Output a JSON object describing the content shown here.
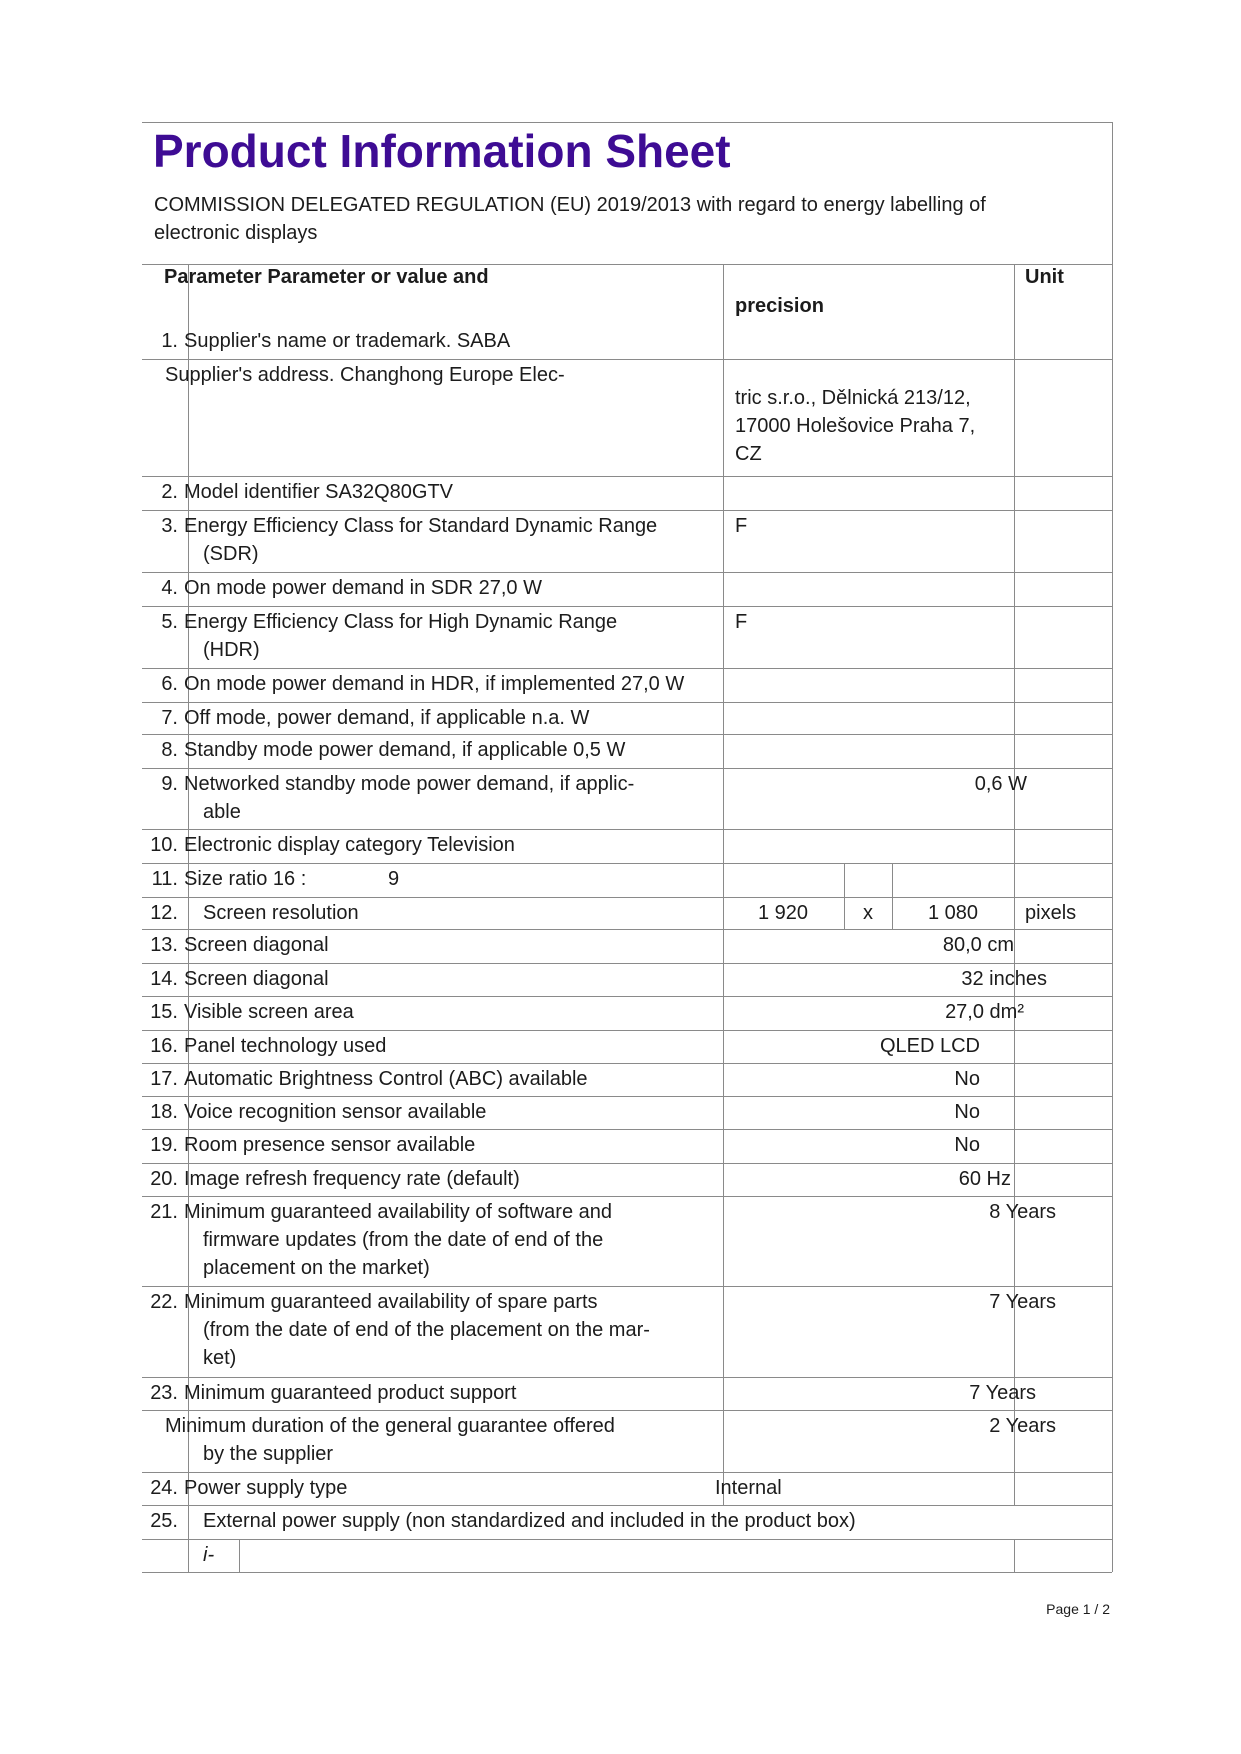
{
  "title": "Product Information Sheet",
  "subtitle": [
    "COMMISSION DELEGATED REGULATION (EU) 2019/2013 with regard to energy labelling of",
    "electronic displays"
  ],
  "header": {
    "param": "Parameter Parameter or value and",
    "precision": "precision",
    "unit": "Unit"
  },
  "rows": [
    {
      "num": "1.",
      "param": [
        "Supplier's name or trademark. SABA"
      ],
      "value": [],
      "unit": ""
    },
    {
      "num": "",
      "param": [
        "Supplier's address. Changhong Europe Elec-"
      ],
      "value": [
        "tric s.r.o., Dělnická 213/12,",
        "17000 Holešovice Praha 7,",
        "CZ"
      ],
      "unit": ""
    },
    {
      "num": "2.",
      "param": [
        "Model identifier SA32Q80GTV"
      ],
      "value": [],
      "unit": ""
    },
    {
      "num": "3.",
      "param": [
        "Energy Efficiency Class for Standard Dynamic Range",
        "(SDR)"
      ],
      "value": [
        "F"
      ],
      "unit": ""
    },
    {
      "num": "4.",
      "param": [
        "On mode power demand in SDR 27,0 W"
      ],
      "value": [],
      "unit": ""
    },
    {
      "num": "5.",
      "param": [
        "Energy Efficiency Class for High Dynamic Range",
        "(HDR)"
      ],
      "value": [
        "F"
      ],
      "unit": ""
    },
    {
      "num": "6.",
      "param": [
        "On mode power demand in HDR, if implemented 27,0 W"
      ],
      "value": [],
      "unit": ""
    },
    {
      "num": "7.",
      "param": [
        "Off mode, power demand, if applicable n.a. W"
      ],
      "value": [],
      "unit": ""
    },
    {
      "num": "8.",
      "param": [
        "Standby mode power demand, if applicable 0,5 W"
      ],
      "value": [],
      "unit": ""
    },
    {
      "num": "9.",
      "param": [
        "Networked standby mode power demand, if applic-",
        "able"
      ],
      "value": [
        "0,6 W"
      ],
      "unit": ""
    },
    {
      "num": "10.",
      "param": [
        "Electronic display category Television"
      ],
      "value": [],
      "unit": ""
    },
    {
      "num": "11.",
      "param": [
        "Size ratio 16 :",
        "9"
      ],
      "value": [],
      "unit": ""
    },
    {
      "num": "12.",
      "param": [
        "Screen resolution"
      ],
      "value": [
        "1 920",
        "x",
        "1 080"
      ],
      "unit": "pixels"
    },
    {
      "num": "13.",
      "param": [
        "Screen diagonal"
      ],
      "value": [
        "80,0 cm"
      ],
      "unit": ""
    },
    {
      "num": "14.",
      "param": [
        "Screen diagonal"
      ],
      "value": [
        "32 inches"
      ],
      "unit": ""
    },
    {
      "num": "15.",
      "param": [
        "Visible screen area"
      ],
      "value": [
        "27,0 dm²"
      ],
      "unit": ""
    },
    {
      "num": "16.",
      "param": [
        "Panel technology used"
      ],
      "value": [
        "QLED LCD"
      ],
      "unit": ""
    },
    {
      "num": "17.",
      "param": [
        "Automatic Brightness Control (ABC) available"
      ],
      "value": [
        "No"
      ],
      "unit": ""
    },
    {
      "num": "18.",
      "param": [
        "Voice recognition sensor available"
      ],
      "value": [
        "No"
      ],
      "unit": ""
    },
    {
      "num": "19.",
      "param": [
        "Room presence sensor available"
      ],
      "value": [
        "No"
      ],
      "unit": ""
    },
    {
      "num": "20.",
      "param": [
        "Image refresh frequency rate (default)"
      ],
      "value": [
        "60 Hz"
      ],
      "unit": ""
    },
    {
      "num": "21.",
      "param": [
        "Minimum guaranteed availability of software and",
        "firmware updates (from the date of end of the",
        "placement on the market)"
      ],
      "value": [
        "8 Years"
      ],
      "unit": ""
    },
    {
      "num": "22.",
      "param": [
        "Minimum guaranteed availability of spare parts",
        "(from the date of end of the placement on the mar-",
        "ket)"
      ],
      "value": [
        "7 Years"
      ],
      "unit": ""
    },
    {
      "num": "23.",
      "param": [
        "Minimum guaranteed product support"
      ],
      "value": [
        "7 Years"
      ],
      "unit": ""
    },
    {
      "num": "",
      "param": [
        "Minimum duration of the general guarantee offered",
        "by the supplier"
      ],
      "value": [
        "2 Years"
      ],
      "unit": ""
    },
    {
      "num": "24.",
      "param": [
        "Power supply type"
      ],
      "value": [
        "Internal"
      ],
      "unit": ""
    },
    {
      "num": "25.",
      "param": [
        "External power supply (non standardized and included in the product box)"
      ],
      "value": [],
      "unit": ""
    },
    {
      "num": "",
      "param": [
        "i-"
      ],
      "value": [],
      "unit": ""
    }
  ],
  "footer": {
    "page": "Page 1 / 2"
  }
}
